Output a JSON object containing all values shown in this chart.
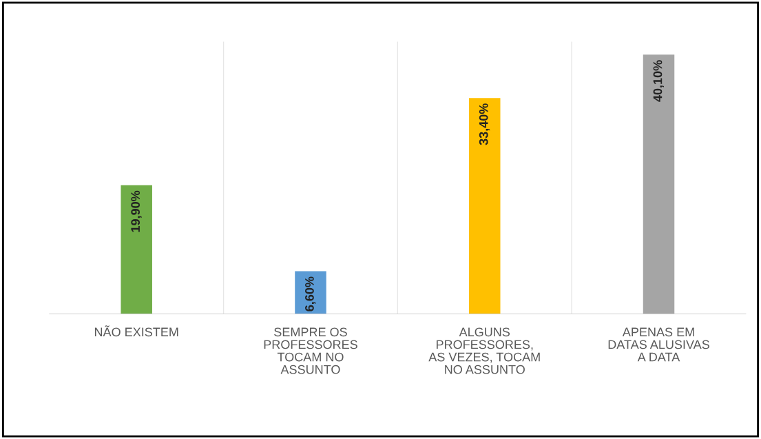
{
  "chart_data": {
    "type": "bar",
    "categories": [
      "NÃO EXISTEM",
      "SEMPRE OS\nPROFESSORES\nTOCAM NO\nASSUNTO",
      "ALGUNS\nPROFESSORES,\nAS VEZES, TOCAM\nNO ASSUNTO",
      "APENAS EM\nDATAS ALUSIVAS\nA DATA"
    ],
    "values": [
      19.9,
      6.6,
      33.4,
      40.1
    ],
    "colors": [
      "#70ad47",
      "#5b9bd5",
      "#ffc000",
      "#a5a5a5"
    ],
    "value_labels": [
      "19,90%",
      "6,60%",
      "33,40%",
      "40,10%"
    ]
  }
}
